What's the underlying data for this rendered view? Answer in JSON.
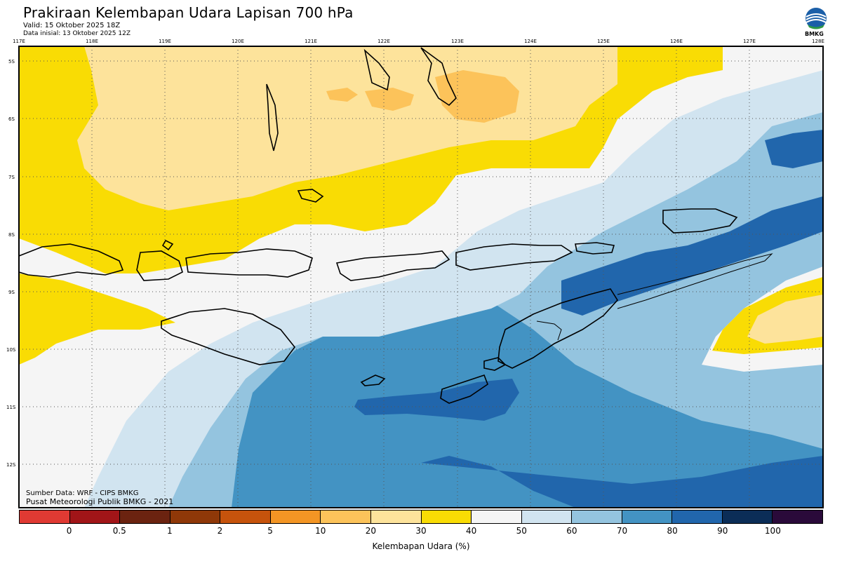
{
  "header": {
    "title": "Prakiraan Kelembapan Udara Lapisan 700 hPa",
    "valid": "Valid: 15 Oktober 2025 18Z",
    "init": "Data inisial: 13 Oktober 2025 12Z"
  },
  "logo": {
    "text": "BMKG",
    "icon": "bmkg-logo-icon"
  },
  "axes": {
    "lon_labels": [
      "117E",
      "118E",
      "119E",
      "120E",
      "121E",
      "122E",
      "123E",
      "124E",
      "125E",
      "126E",
      "127E",
      "128E"
    ],
    "lat_labels": [
      "5S",
      "6S",
      "7S",
      "8S",
      "9S",
      "10S",
      "11S",
      "12S"
    ]
  },
  "credits": {
    "source": "Sumber Data: WRF - CIPS BMKG",
    "org": "Pusat Meteorologi Publik BMKG - 2021"
  },
  "legend": {
    "title": "Kelembapan Udara (%)",
    "ticks": [
      "0",
      "0.5",
      "1",
      "2",
      "5",
      "10",
      "20",
      "30",
      "40",
      "50",
      "60",
      "70",
      "80",
      "90",
      "100"
    ],
    "colors": [
      "#e03a33",
      "#a11518",
      "#6b2310",
      "#8f3808",
      "#c6530c",
      "#f39524",
      "#fcc35a",
      "#fde39b",
      "#f9dc04",
      "#f5f5f5",
      "#d1e4f0",
      "#94c4df",
      "#4393c3",
      "#2166ac",
      "#0b2d57",
      "#2a0a3a"
    ]
  }
}
